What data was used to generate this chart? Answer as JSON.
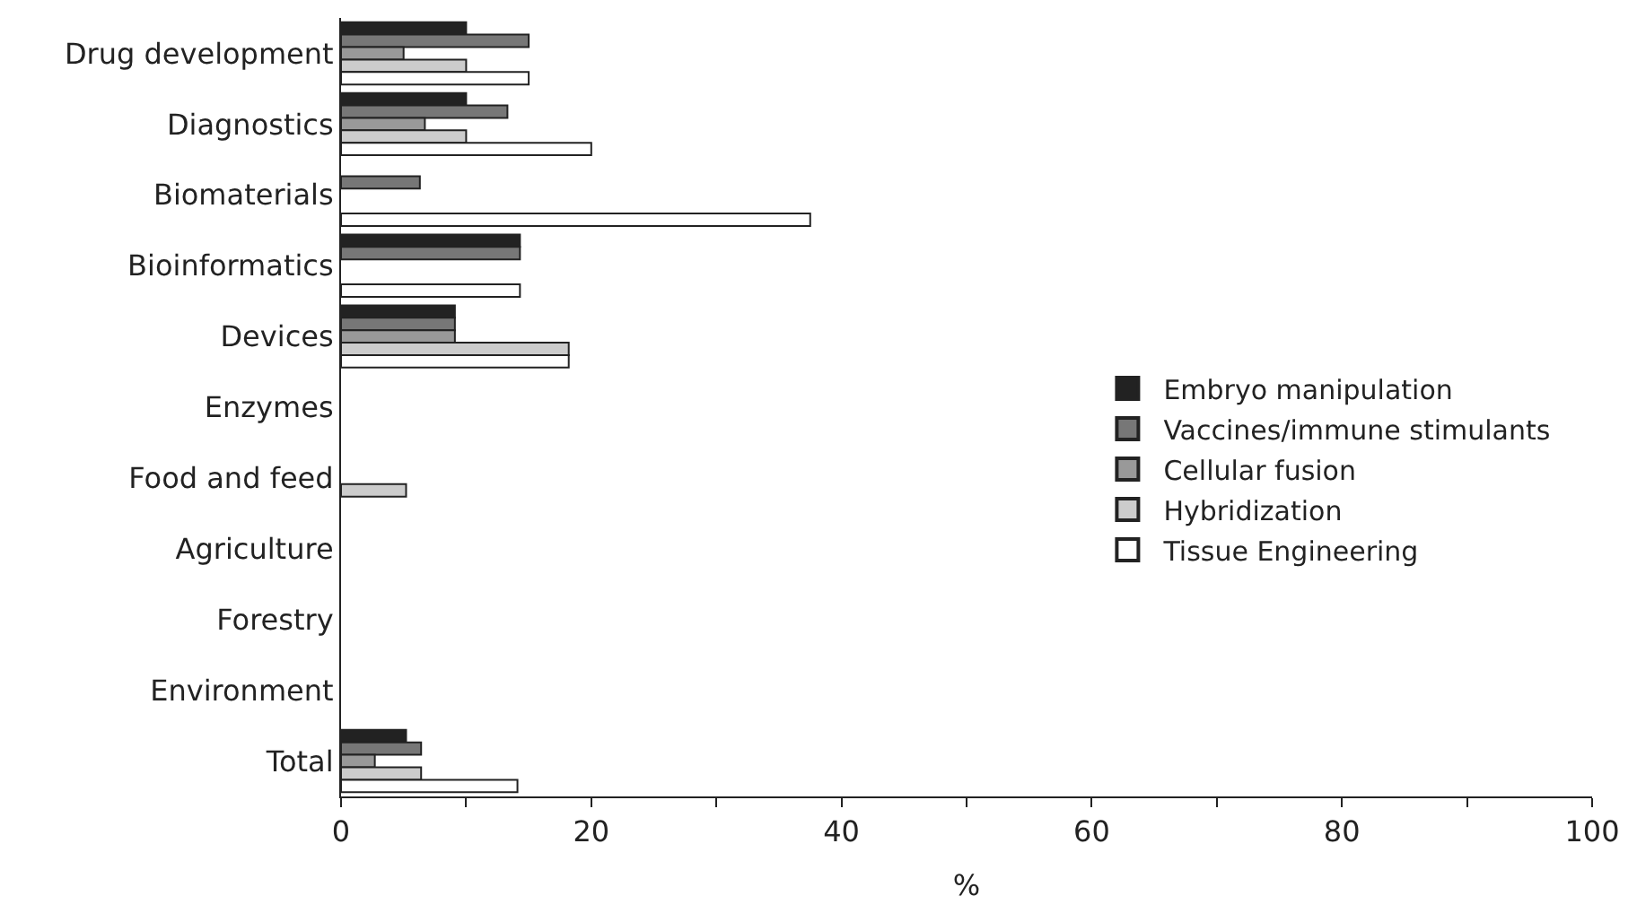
{
  "chart_data": {
    "type": "bar",
    "orientation": "horizontal",
    "xlabel": "%",
    "categories": [
      "Drug development",
      "Diagnostics",
      "Biomaterials",
      "Bioinformatics",
      "Devices",
      "Enzymes",
      "Food and feed",
      "Agriculture",
      "Forestry",
      "Environment",
      "Total"
    ],
    "series": [
      {
        "name": "Embryo manipulation",
        "color": "#222222",
        "values": [
          10,
          10,
          null,
          14.3,
          9.1,
          null,
          null,
          null,
          null,
          null,
          5.2
        ]
      },
      {
        "name": "Vaccines/immune stimulants",
        "color": "#777777",
        "values": [
          15,
          13.3,
          6.3,
          14.3,
          9.1,
          null,
          null,
          null,
          null,
          null,
          6.4
        ]
      },
      {
        "name": "Cellular fusion",
        "color": "#999999",
        "values": [
          5,
          6.7,
          null,
          null,
          9.1,
          null,
          null,
          null,
          null,
          null,
          2.7
        ]
      },
      {
        "name": "Hybridization",
        "color": "#cccccc",
        "values": [
          10,
          10,
          null,
          null,
          18.2,
          null,
          5.2,
          null,
          null,
          null,
          6.4
        ]
      },
      {
        "name": "Tissue Engineering",
        "color": "#ffffff",
        "values": [
          15,
          20,
          37.5,
          14.3,
          18.2,
          null,
          null,
          null,
          null,
          null,
          14.1
        ]
      }
    ],
    "xlim": [
      0,
      100
    ],
    "xticks": [
      0,
      {
        "value": 10,
        "label": null
      },
      20,
      {
        "value": 30,
        "label": null
      },
      40,
      {
        "value": 50,
        "label": null
      },
      60,
      {
        "value": 70,
        "label": null
      },
      80,
      {
        "value": 90,
        "label": null
      },
      100
    ],
    "legend": "right"
  }
}
